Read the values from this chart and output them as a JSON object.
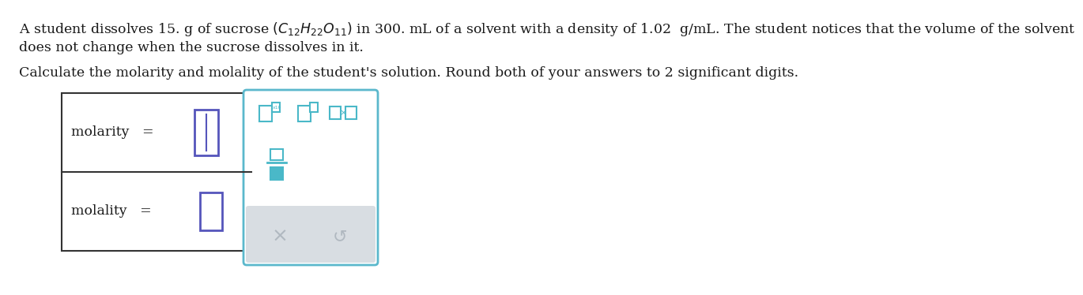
{
  "line1": "A student dissolves 15. g of sucrose $(\\mathregular{C_{12}H_{22}O_{11}})$ in 300. mL of a solvent with a density of 1.02  g/mL. The student notices that the volume of the solvent",
  "line2": "does not change when the sucrose dissolves in it.",
  "line3": "Calculate the molarity and molality of the student's solution. Round both of your answers to 2 significant digits.",
  "label_molarity": "molarity",
  "label_molality": "molality",
  "equals": "=",
  "bg_color": "#ffffff",
  "text_color": "#1a1a1a",
  "box_border_color": "#333333",
  "input_box_color": "#5555bb",
  "toolbar_border": "#5bb8cc",
  "teal": "#4ab8c8",
  "gray_btn": "#b0b8c0",
  "gray_bg": "#d8dde2",
  "font_size": 12.5
}
